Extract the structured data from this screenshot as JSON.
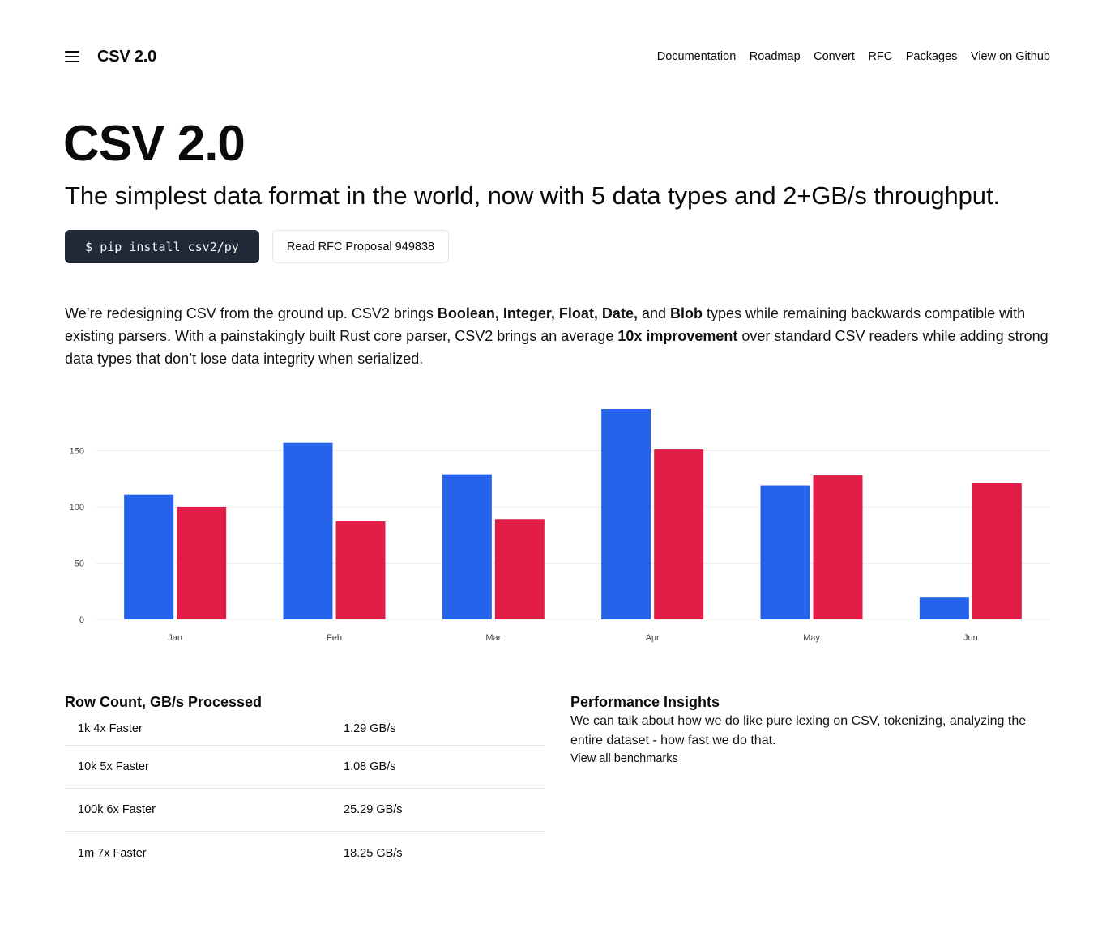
{
  "nav": {
    "brand": "CSV 2.0",
    "links": [
      "Documentation",
      "Roadmap",
      "Convert",
      "RFC",
      "Packages",
      "View on Github"
    ]
  },
  "hero": {
    "title": "CSV 2.0",
    "subtitle": "The simplest data format in the world, now with 5 data types and 2+GB/s throughput.",
    "install_label": "$ pip install csv2/py",
    "rfc_label": "Read RFC Proposal 949838"
  },
  "intro": {
    "p1": "We’re redesigning CSV from the ground up. CSV2 brings ",
    "b1": "Boolean, Integer, Float, Date,",
    "p2": " and ",
    "b2": "Blob",
    "p3": " types while remaining backwards compatible with existing parsers. With a painstakingly built Rust core parser, CSV2 brings an average ",
    "b3": "10x improvement",
    "p4": " over standard CSV readers while adding strong data types that don’t lose data integrity when serialized."
  },
  "chart_data": {
    "type": "bar",
    "categories": [
      "Jan",
      "Feb",
      "Mar",
      "Apr",
      "May",
      "Jun"
    ],
    "series": [
      {
        "values": [
          111,
          157,
          129,
          187,
          119,
          20
        ],
        "color": "#2563eb"
      },
      {
        "values": [
          100,
          87,
          89,
          151,
          128,
          121
        ],
        "color": "#e11d48"
      }
    ],
    "yticks": [
      0,
      50,
      100,
      150
    ],
    "ylim": [
      0,
      187
    ],
    "grid": true
  },
  "rows": {
    "title": "Row Count, GB/s Processed",
    "items": [
      {
        "label": "1k 4x Faster",
        "value": "1.29 GB/s"
      },
      {
        "label": "10k 5x Faster",
        "value": "1.08 GB/s"
      },
      {
        "label": "100k 6x Faster",
        "value": "25.29 GB/s"
      },
      {
        "label": "1m 7x Faster",
        "value": "18.25 GB/s"
      }
    ]
  },
  "insights": {
    "title": "Performance Insights",
    "text": "We can talk about how we do like pure lexing on CSV, tokenizing, analyzing the entire dataset - how fast we do that.",
    "link": "View all benchmarks"
  }
}
